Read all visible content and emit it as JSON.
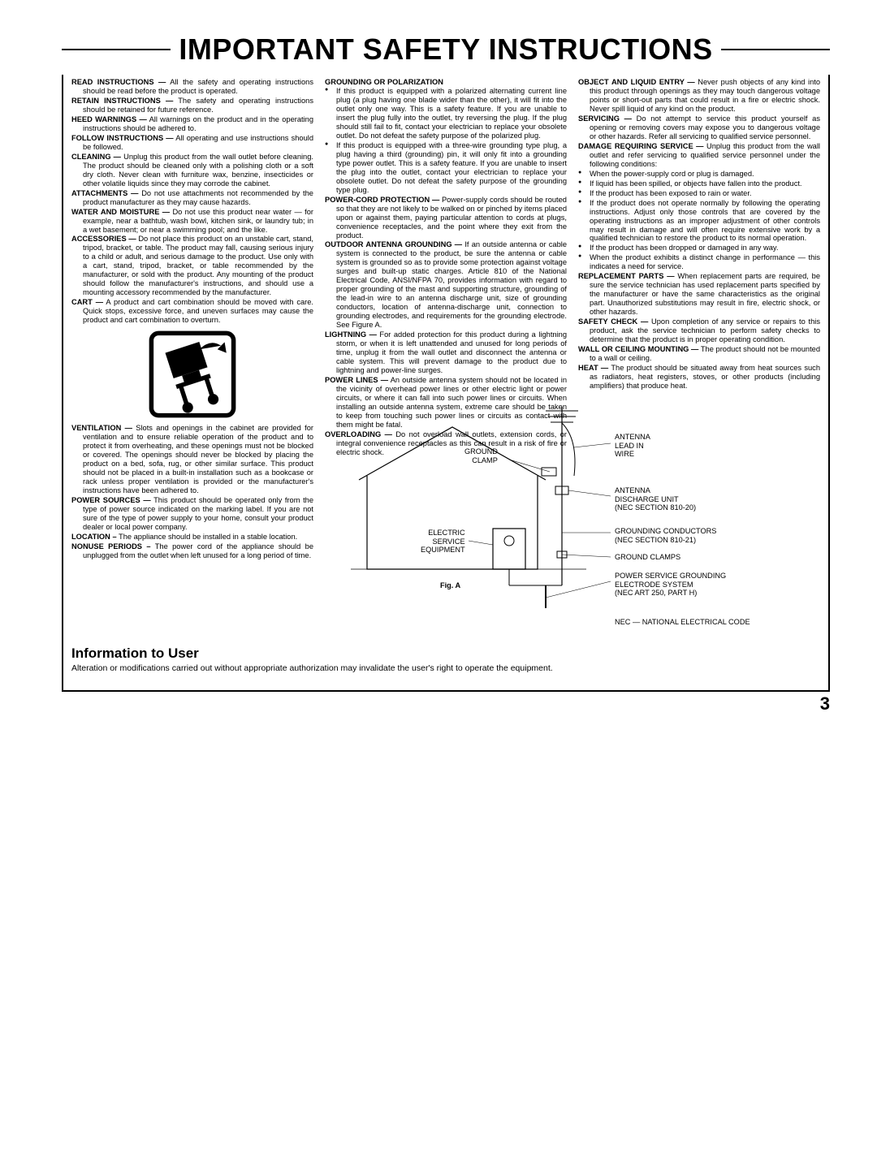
{
  "title": "IMPORTANT SAFETY INSTRUCTIONS",
  "page_number": "3",
  "col1": {
    "read": "All the safety and operating instructions should be read before the product is operated.",
    "retain": "The safety and operating instructions should be retained for future reference.",
    "heed": "All warnings on the product and in the operating instructions should be adhered to.",
    "follow": "All operating and use instructions should be followed.",
    "cleaning": "Unplug this product from the wall outlet before cleaning. The product should be cleaned only with a polishing cloth or a soft dry cloth. Never clean with furniture wax, benzine, insecticides or other volatile liquids since they may corrode the cabinet.",
    "attachments": "Do not use attachments not recommended by the product manufacturer as they may cause hazards.",
    "water": "Do not use this product near water — for example, near a bathtub, wash bowl, kitchen sink, or laundry tub; in a wet basement; or near a swimming pool; and the like.",
    "accessories": "Do not place this product on an unstable cart, stand, tripod, bracket, or table. The product may fall, causing serious injury to a child or adult, and serious damage to the product. Use only with a cart, stand, tripod, bracket, or table recommended by the manufacturer, or sold with the product. Any mounting of the product should follow the manufacturer's instructions, and should use a mounting accessory recommended by the manufacturer.",
    "cart": "A product and cart combination should be moved with care. Quick stops, excessive force, and uneven surfaces may cause the product and cart combination to overturn.",
    "ventilation": "Slots and openings in the cabinet are provided for ventilation and to ensure reliable operation of the product and to protect it from overheating, and these openings must not be blocked or covered. The openings should never be blocked by placing the product on a bed, sofa, rug, or other similar surface. This product should not be placed in a built-in installation such as a bookcase or rack unless proper ventilation is provided or the manufacturer's instructions have been adhered to.",
    "power_sources": "This product should be operated only from the type of power source indicated on the marking label. If you are not sure of the type of power supply to your home, consult your product dealer or local power company.",
    "location": "The appliance should be installed in a stable location.",
    "nonuse": "The power cord of the appliance should be unplugged from the outlet when left unused for a long period of time."
  },
  "col2": {
    "section": "GROUNDING OR POLARIZATION",
    "g1": "If this product is equipped with a polarized alternating current line plug (a plug having one blade wider than the other), it will fit into the outlet only one way. This is a safety feature. If you are unable to insert the plug fully into the outlet, try reversing the plug. If the plug should still fail to fit, contact your electrician to replace your obsolete outlet. Do not defeat the safety purpose of the polarized plug.",
    "g2": "If this product is equipped with a three-wire grounding type plug, a plug having a third (grounding) pin, it will only fit into a grounding type power outlet. This is a safety feature. If you are unable to insert the plug into the outlet, contact your electrician to replace your obsolete outlet. Do not defeat the safety purpose of the grounding type plug.",
    "powercord": "Power-supply cords should be routed so that they are not likely to be walked on or pinched by items placed upon or against them, paying particular attention to cords at plugs, convenience receptacles, and the point where they exit from the product.",
    "outdoor": "If an outside antenna or cable system is connected to the product, be sure the antenna or cable system is grounded so as to provide some protection against voltage surges and built-up static charges. Article 810 of the National Electrical Code, ANSI/NFPA 70, provides information with regard to proper grounding of the mast and supporting structure, grounding of the lead-in wire to an antenna discharge unit, size of grounding conductors, location of antenna-discharge unit, connection to grounding electrodes, and requirements for the grounding electrode. See Figure A.",
    "lightning": "For added protection for this product during a lightning storm, or when it is left unattended and unused for long periods of time, unplug it from the wall outlet and disconnect the antenna or cable system. This will prevent damage to the product due to lightning and power-line surges.",
    "powerlines": "An outside antenna system should not be located in the vicinity of overhead power lines or other electric light or power circuits, or where it can fall into such power lines or circuits. When installing an outside antenna system, extreme care should be taken to keep from touching such power lines or circuits as contact with them might be fatal.",
    "overloading": "Do not overload wall outlets, extension cords, or integral convenience receptacles as this can result in a risk of fire or electric shock."
  },
  "col3": {
    "object": "Never push objects of any kind into this product through openings as they may touch dangerous voltage points or short-out parts that could result in a fire or electric shock. Never spill liquid of any kind on the product.",
    "servicing": "Do not attempt to service this product yourself as opening or removing covers may expose you to dangerous voltage or other hazards. Refer all servicing to qualified service personnel.",
    "damage": "Unplug this product from the wall outlet and refer servicing to qualified service personnel under the following conditions:",
    "d1": "When the power-supply cord or plug is damaged.",
    "d2": "If liquid has been spilled, or objects have fallen into the product.",
    "d3": "If the product has been exposed to rain or water.",
    "d4": "If the product does not operate normally by following the operating instructions. Adjust only those controls that are covered by the operating instructions as an improper adjustment of other controls may result in damage and will often require extensive work by a qualified technician to restore the product to its normal operation.",
    "d5": "If the product has been dropped or damaged in any way.",
    "d6": "When the product exhibits a distinct change in performance — this indicates a need for service.",
    "replacement": "When replacement parts are required, be sure the service technician has used replacement parts specified by the manufacturer or have the same characteristics as the original part. Unauthorized substitutions may result in fire, electric shock, or other hazards.",
    "safety_check": "Upon completion of any service or repairs to this product, ask the service technician to perform safety checks to determine that the product is in proper operating condition.",
    "wall": "The product should not be mounted to a wall or ceiling.",
    "heat": "The product should be situated away from heat sources such as radiators, heat registers, stoves, or other products (including amplifiers) that produce heat."
  },
  "diagram": {
    "antenna_lead": "ANTENNA\nLEAD IN\nWIRE",
    "ground_clamp_top": "GROUND\nCLAMP",
    "antenna_discharge": "ANTENNA\nDISCHARGE UNIT\n(NEC SECTION 810-20)",
    "electric_service": "ELECTRIC\nSERVICE\nEQUIPMENT",
    "grounding_conductors": "GROUNDING CONDUCTORS\n(NEC SECTION 810-21)",
    "ground_clamps": "GROUND CLAMPS",
    "power_service": "POWER SERVICE GROUNDING\nELECTRODE SYSTEM\n(NEC ART 250, PART H)",
    "nec_note": "NEC — NATIONAL ELECTRICAL CODE",
    "fig": "Fig. A"
  },
  "info": {
    "head": "Information to User",
    "body": "Alteration or modifications carried out without appropriate authorization may invalidate the user's right to operate the equipment."
  }
}
